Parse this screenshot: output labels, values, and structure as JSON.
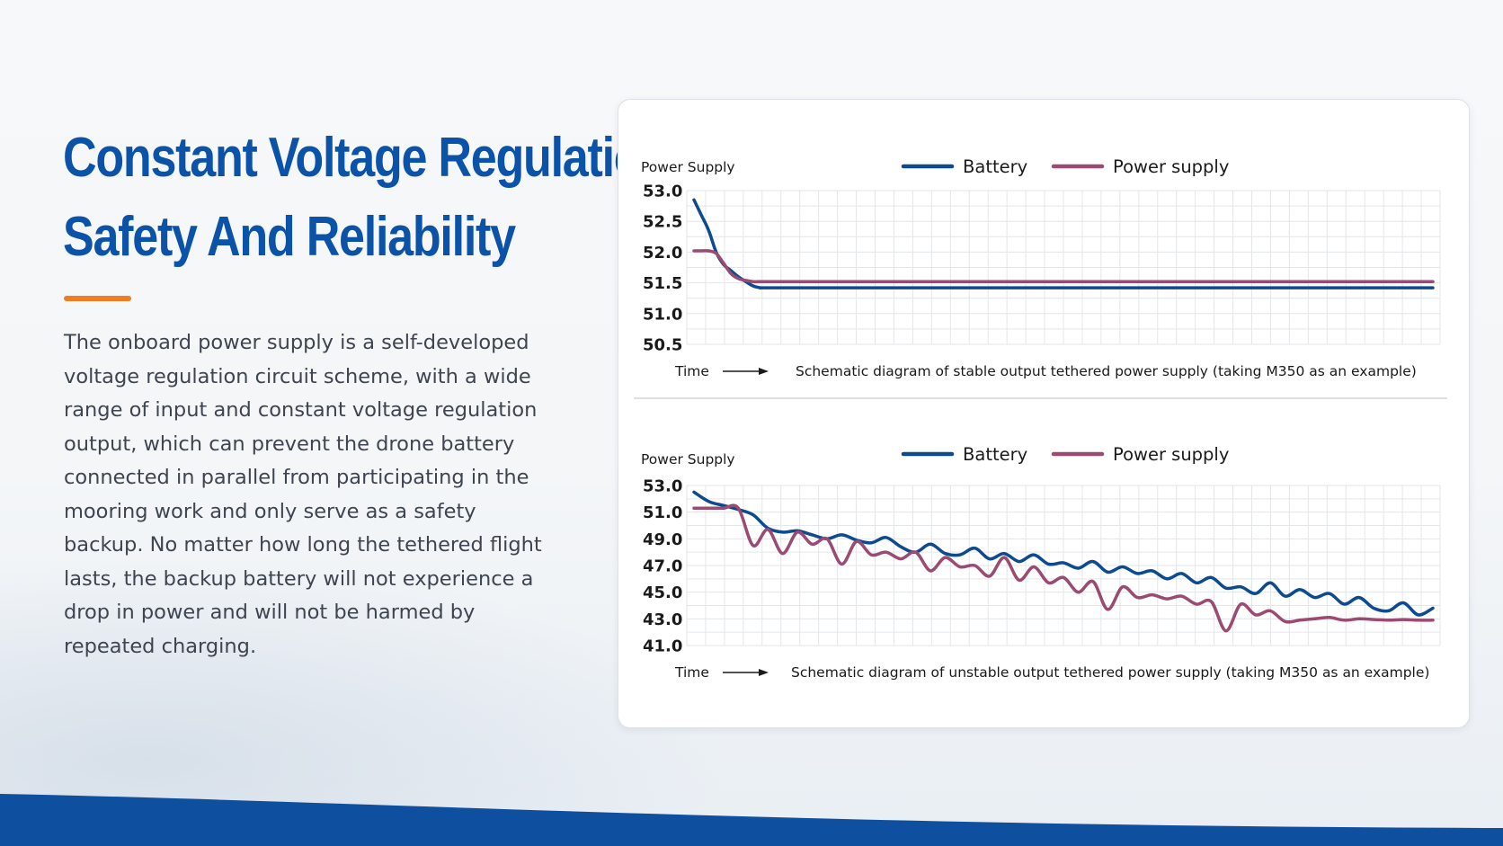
{
  "heading": {
    "line1": "Constant Voltage Regulation",
    "line2": "Safety And Reliability"
  },
  "body": "The onboard power supply is a self-developed voltage regulation circuit scheme, with a wide range of input and constant voltage regulation output, which can prevent the drone battery connected in parallel from participating in the mooring work and only serve as a safety backup. No matter how long the tethered flight lasts, the backup battery will not experience a drop in power and will not be harmed by repeated charging.",
  "colors": {
    "brand_blue": "#0b53a8",
    "accent_orange": "#f07d22",
    "battery_line": "#0d4a8f",
    "power_supply_line": "#9b4a72",
    "body_text": "#3e4550"
  },
  "chart_data": [
    {
      "type": "line",
      "ylabel": "Power Supply",
      "xlabel": "Time",
      "caption": "Schematic diagram of stable output tethered power supply (taking M350 as an example)",
      "ylim": [
        50.5,
        53.0
      ],
      "yticks": [
        "53.0",
        "52.5",
        "52.0",
        "51.5",
        "51.0",
        "50.5"
      ],
      "legend_position": "top-center",
      "grid": true,
      "x": [
        0,
        1,
        2,
        3,
        4,
        5,
        6,
        7,
        8,
        9,
        10,
        20,
        30,
        40,
        50,
        60,
        70,
        80,
        90,
        100
      ],
      "series": [
        {
          "name": "Battery",
          "values": [
            52.85,
            52.6,
            52.35,
            52.0,
            51.8,
            51.7,
            51.6,
            51.52,
            51.45,
            51.42,
            51.42,
            51.42,
            51.42,
            51.42,
            51.42,
            51.42,
            51.42,
            51.42,
            51.42,
            51.42
          ]
        },
        {
          "name": "Power supply",
          "values": [
            52.02,
            52.02,
            52.02,
            51.98,
            51.82,
            51.65,
            51.57,
            51.54,
            51.52,
            51.52,
            51.52,
            51.52,
            51.52,
            51.52,
            51.52,
            51.52,
            51.52,
            51.52,
            51.52,
            51.52
          ]
        }
      ]
    },
    {
      "type": "line",
      "ylabel": "Power Supply",
      "xlabel": "Time",
      "caption": "Schematic diagram of unstable output tethered power supply (taking M350 as an example)",
      "ylim": [
        41.0,
        53.0
      ],
      "yticks": [
        "53.0",
        "51.0",
        "49.0",
        "47.0",
        "45.0",
        "43.0",
        "41.0"
      ],
      "legend_position": "top-center",
      "grid": true,
      "x": [
        0,
        2,
        4,
        6,
        8,
        10,
        12,
        14,
        16,
        18,
        20,
        22,
        24,
        26,
        28,
        30,
        32,
        34,
        36,
        38,
        40,
        42,
        44,
        46,
        48,
        50,
        52,
        54,
        56,
        58,
        60,
        62,
        64,
        66,
        68,
        70,
        72,
        74,
        76,
        78,
        80,
        82,
        84,
        86,
        88,
        90,
        92,
        94,
        96,
        98,
        100
      ],
      "series": [
        {
          "name": "Battery",
          "values": [
            52.5,
            51.8,
            51.5,
            51.2,
            50.8,
            49.8,
            49.5,
            49.6,
            49.3,
            49.0,
            49.3,
            48.9,
            48.7,
            49.1,
            48.4,
            48.0,
            48.6,
            47.9,
            47.8,
            48.3,
            47.5,
            47.9,
            47.3,
            47.8,
            47.1,
            47.2,
            46.8,
            47.3,
            46.5,
            46.9,
            46.4,
            46.6,
            46.0,
            46.4,
            45.7,
            46.1,
            45.3,
            45.4,
            44.9,
            45.7,
            44.7,
            45.2,
            44.6,
            44.9,
            44.1,
            44.6,
            43.8,
            43.6,
            44.2,
            43.3,
            43.8
          ]
        },
        {
          "name": "Power supply",
          "values": [
            51.3,
            51.3,
            51.3,
            51.3,
            48.5,
            49.7,
            47.9,
            49.5,
            48.6,
            49.0,
            47.1,
            48.8,
            47.8,
            48.0,
            47.5,
            48.0,
            46.6,
            47.6,
            46.9,
            47.0,
            46.2,
            47.6,
            45.9,
            46.9,
            45.7,
            46.1,
            45.0,
            45.8,
            43.7,
            45.4,
            44.6,
            44.8,
            44.5,
            44.7,
            44.1,
            44.3,
            42.1,
            44.1,
            43.3,
            43.6,
            42.8,
            42.9,
            43.0,
            43.1,
            42.9,
            43.0,
            42.95,
            42.9,
            42.95,
            42.9,
            42.9
          ]
        }
      ]
    }
  ]
}
